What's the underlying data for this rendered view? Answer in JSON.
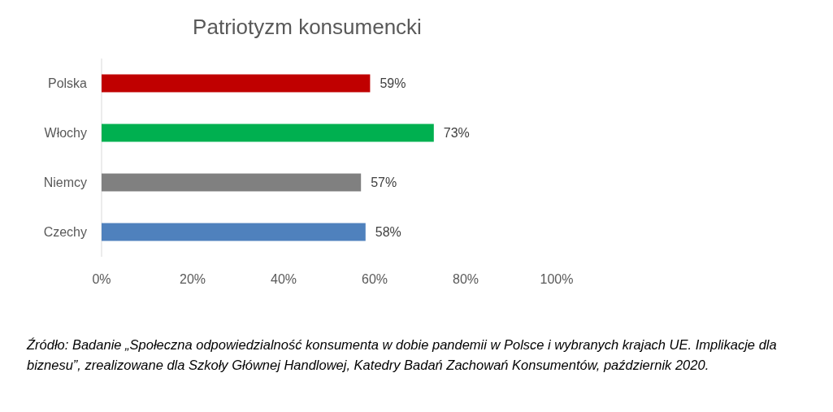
{
  "chart_data": {
    "type": "bar",
    "orientation": "horizontal",
    "title": "Patriotyzm konsumencki",
    "categories": [
      "Polska",
      "Włochy",
      "Niemcy",
      "Czechy"
    ],
    "values": [
      59,
      73,
      57,
      58
    ],
    "colors": [
      "#c00000",
      "#00b050",
      "#808080",
      "#4f81bd"
    ],
    "xlim": [
      0,
      100
    ],
    "xticks": [
      {
        "value": 0,
        "label": "0%"
      },
      {
        "value": 20,
        "label": "20%"
      },
      {
        "value": 40,
        "label": "40%"
      },
      {
        "value": 60,
        "label": "60%"
      },
      {
        "value": 80,
        "label": "80%"
      },
      {
        "value": 100,
        "label": "100%"
      }
    ],
    "value_labels": [
      "59%",
      "73%",
      "57%",
      "58%"
    ],
    "grid": false,
    "annotations": [
      "Źródło: Badanie „Społeczna odpowiedzialność konsumenta w dobie pandemii w Polsce i wybranych krajach UE. Implikacje dla biznesu”, zrealizowane dla Szkoły Głównej Handlowej, Katedry Badań Zachowań Konsumentów, październik 2020."
    ]
  }
}
